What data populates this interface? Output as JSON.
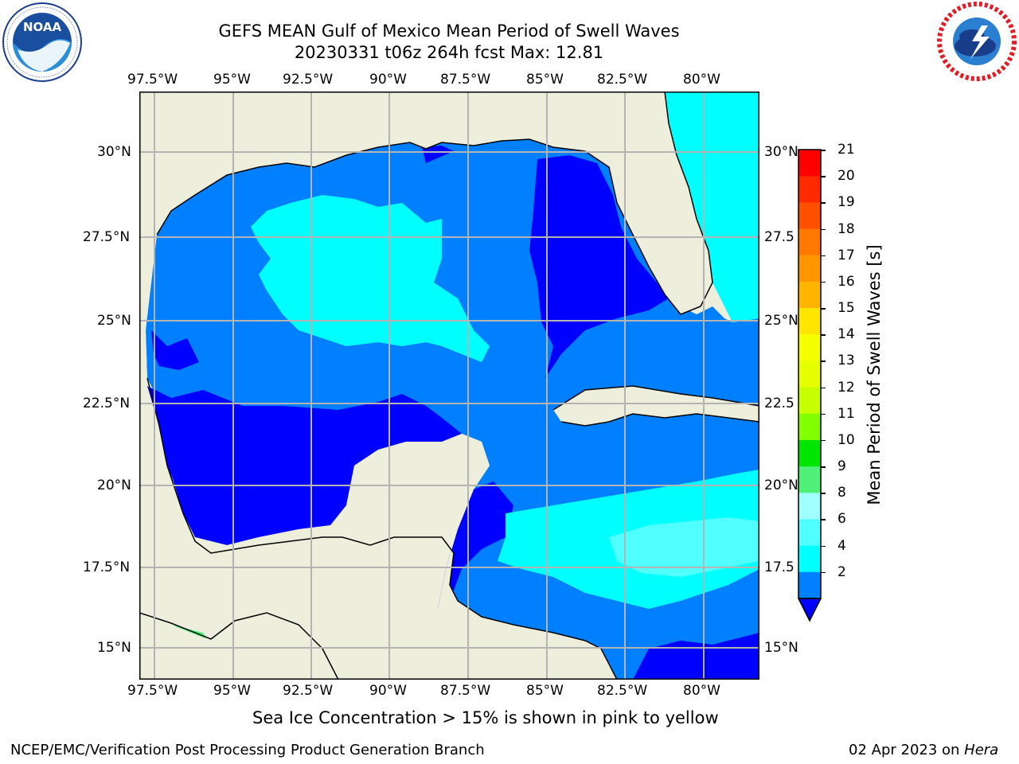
{
  "header": {
    "title_line1": "GEFS MEAN Gulf of Mexico Mean Period of Swell Waves",
    "title_line2": "20230331 t06z 264h fcst   Max: 12.81"
  },
  "logos": {
    "left": {
      "icon": "noaa-logo",
      "text": "NOAA"
    },
    "right": {
      "icon": "nws-logo"
    }
  },
  "axes": {
    "lon_labels": [
      "97.5°W",
      "95°W",
      "92.5°W",
      "90°W",
      "87.5°W",
      "85°W",
      "82.5°W",
      "80°W"
    ],
    "lat_labels_left": [
      "30°N",
      "27.5°N",
      "25°N",
      "22.5°N",
      "20°N",
      "17.5°N",
      "15°N"
    ],
    "lat_labels_right": [
      "30°N",
      "27.5",
      "25°N",
      "22.5",
      "20°N",
      "17.5",
      "15°N"
    ]
  },
  "colorbar": {
    "label": "Mean Period of Swell Waves [s]",
    "ticks": [
      "21",
      "20",
      "19",
      "18",
      "17",
      "16",
      "15",
      "14",
      "13",
      "12",
      "11",
      "10",
      "9",
      "8",
      "6",
      "4",
      "2"
    ],
    "colors": [
      "#ff0000",
      "#ff2a00",
      "#ff5000",
      "#ff7800",
      "#ff9600",
      "#ffb400",
      "#ffe600",
      "#f5ff00",
      "#e6ff00",
      "#c8ff00",
      "#82ff00",
      "#00e600",
      "#50f078",
      "#a0ffff",
      "#50ffff",
      "#00ffff",
      "#0080ff"
    ],
    "extend_color": "#0000ff"
  },
  "map_colors": {
    "land": "#eeeedc",
    "period_2_4": "#0080ff",
    "under_2": "#0000ff",
    "period_4_6": "#00ffff",
    "period_6_8": "#50ffff",
    "period_8_9": "#a0ffff",
    "period_9_10": "#50f078",
    "period_10_11": "#00e600",
    "period_11_12": "#30d830",
    "grid": "#b4b4b4"
  },
  "footer": {
    "note": "Sea Ice Concentration > 15% is shown in pink to yellow",
    "left": "NCEP/EMC/Verification Post Processing Product Generation Branch",
    "right_date": "02 Apr 2023 on ",
    "right_machine": "Hera"
  }
}
